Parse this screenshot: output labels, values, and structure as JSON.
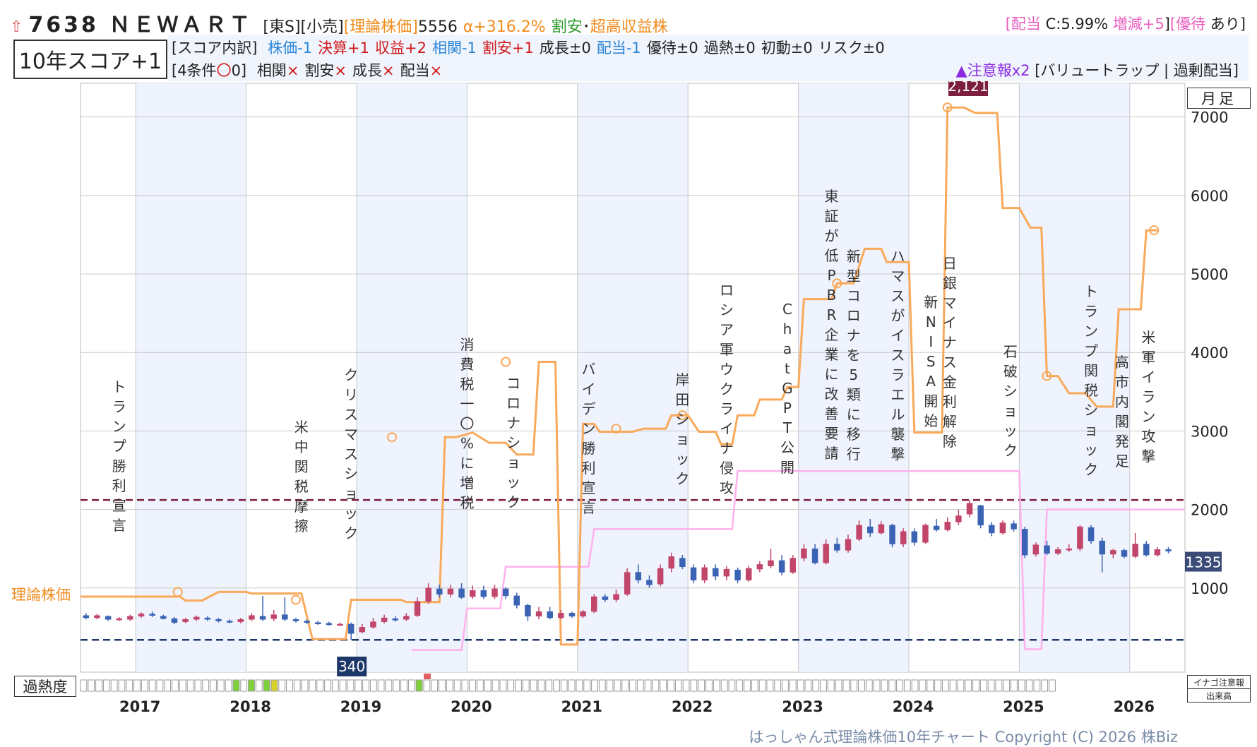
{
  "header": {
    "code": "7638",
    "name": "ＮＥＷＡＲＴ",
    "market": "[東S]",
    "sector": "[小売]",
    "theory_label": "[理論株価]",
    "theory_value": "5556",
    "alpha": "α+316.2%",
    "cheap": "割安",
    "dot": "･",
    "high_yield": "超高収益株",
    "dividend_label": "配当",
    "dividend_value": "C:5.99%",
    "change": "増減+5",
    "yutai_label": "優待",
    "yutai_value": "あり"
  },
  "score": {
    "title": "10年スコア+1",
    "breakdown_label": "[スコア内訳]",
    "items": [
      {
        "label": "株価-1",
        "color": "#2a86d8"
      },
      {
        "label": "決算+1",
        "color": "#d01818"
      },
      {
        "label": "収益+2",
        "color": "#d01818"
      },
      {
        "label": "相関-1",
        "color": "#2a86d8"
      },
      {
        "label": "割安+1",
        "color": "#d01818"
      },
      {
        "label": "成長±0",
        "color": "#222222"
      },
      {
        "label": "配当-1",
        "color": "#2a86d8"
      },
      {
        "label": "優待±0",
        "color": "#222222"
      },
      {
        "label": "過熱±0",
        "color": "#222222"
      },
      {
        "label": "初動±0",
        "color": "#222222"
      },
      {
        "label": "リスク±0",
        "color": "#222222"
      }
    ],
    "conditions_label": "[4条件",
    "conditions_mark": "〇",
    "conditions_count": "0]",
    "conditions": [
      "相関",
      "割安",
      "成長",
      "配当"
    ],
    "cross": "×",
    "warning": "▲注意報x2",
    "warning_detail": "[バリュートラップ | 過剰配当]"
  },
  "controls": {
    "period": "月足",
    "heat_label": "過熱度",
    "inago_label": "イナゴ注意報",
    "volume_label": "出来高"
  },
  "footer": "はっしゃん式理論株価10年チャート Copyright (C) 2026 株Biz",
  "chart_data": {
    "type": "candlestick",
    "ylim": [
      0,
      7500
    ],
    "yticks": [
      1000,
      2000,
      3000,
      4000,
      5000,
      6000,
      7000
    ],
    "years": [
      "2017",
      "2018",
      "2019",
      "2020",
      "2021",
      "2022",
      "2023",
      "2024",
      "2025",
      "2026"
    ],
    "theory_label": "理論株価",
    "high_label": "2,121",
    "low_label": "340",
    "high_value": 2121,
    "low_value": 340,
    "current_label": "1335",
    "current_value": 1335,
    "colors": {
      "up": "#c2456a",
      "down": "#3b63b4",
      "theory": "#f9a95a",
      "pink": "#ffb0ec",
      "high": "#7c1f3e",
      "low": "#1e3769",
      "band": "#eef3fd"
    },
    "theory_price": [
      [
        2016.5,
        890
      ],
      [
        2017.4,
        890
      ],
      [
        2017.45,
        840
      ],
      [
        2017.6,
        840
      ],
      [
        2017.75,
        950
      ],
      [
        2018.0,
        950
      ],
      [
        2018.05,
        930
      ],
      [
        2018.5,
        930
      ],
      [
        2018.6,
        350
      ],
      [
        2018.9,
        350
      ],
      [
        2018.95,
        850
      ],
      [
        2019.4,
        850
      ],
      [
        2019.45,
        820
      ],
      [
        2019.75,
        820
      ],
      [
        2019.8,
        2920
      ],
      [
        2019.9,
        2920
      ],
      [
        2020.05,
        2980
      ],
      [
        2020.2,
        2850
      ],
      [
        2020.35,
        2850
      ],
      [
        2020.45,
        2700
      ],
      [
        2020.6,
        2700
      ],
      [
        2020.65,
        3880
      ],
      [
        2020.8,
        3880
      ],
      [
        2020.85,
        280
      ],
      [
        2021.0,
        280
      ],
      [
        2021.05,
        3090
      ],
      [
        2021.15,
        3090
      ],
      [
        2021.2,
        2990
      ],
      [
        2021.5,
        2990
      ],
      [
        2021.6,
        3030
      ],
      [
        2021.8,
        3030
      ],
      [
        2021.85,
        3200
      ],
      [
        2022.0,
        3200
      ],
      [
        2022.1,
        2990
      ],
      [
        2022.25,
        2990
      ],
      [
        2022.3,
        2830
      ],
      [
        2022.4,
        2830
      ],
      [
        2022.45,
        3200
      ],
      [
        2022.6,
        3200
      ],
      [
        2022.65,
        3400
      ],
      [
        2022.85,
        3400
      ],
      [
        2022.9,
        3560
      ],
      [
        2023.0,
        3560
      ],
      [
        2023.05,
        4680
      ],
      [
        2023.3,
        4680
      ],
      [
        2023.35,
        4880
      ],
      [
        2023.5,
        4880
      ],
      [
        2023.6,
        5320
      ],
      [
        2023.75,
        5320
      ],
      [
        2023.8,
        5150
      ],
      [
        2024.0,
        5150
      ],
      [
        2024.05,
        2980
      ],
      [
        2024.3,
        2980
      ],
      [
        2024.35,
        7120
      ],
      [
        2024.5,
        7120
      ],
      [
        2024.6,
        7050
      ],
      [
        2024.8,
        7050
      ],
      [
        2024.85,
        5840
      ],
      [
        2025.0,
        5840
      ],
      [
        2025.1,
        5590
      ],
      [
        2025.2,
        5590
      ],
      [
        2025.25,
        3700
      ],
      [
        2025.35,
        3700
      ],
      [
        2025.45,
        3480
      ],
      [
        2025.6,
        3480
      ],
      [
        2025.7,
        3310
      ],
      [
        2025.85,
        3310
      ],
      [
        2025.9,
        4550
      ],
      [
        2026.1,
        4550
      ],
      [
        2026.15,
        5556
      ],
      [
        2026.25,
        5556
      ]
    ],
    "theory_markers": [
      [
        2017.38,
        950
      ],
      [
        2018.45,
        850
      ],
      [
        2019.32,
        2920
      ],
      [
        2020.35,
        3880
      ],
      [
        2021.35,
        3030
      ],
      [
        2021.95,
        3200
      ],
      [
        2023.35,
        4880
      ],
      [
        2024.35,
        7120
      ],
      [
        2025.25,
        3700
      ],
      [
        2026.22,
        5556
      ]
    ],
    "pink_line": [
      [
        2019.5,
        210
      ],
      [
        2019.95,
        210
      ],
      [
        2020.0,
        740
      ],
      [
        2020.3,
        740
      ],
      [
        2020.35,
        1270
      ],
      [
        2021.1,
        1270
      ],
      [
        2021.15,
        1750
      ],
      [
        2022.4,
        1750
      ],
      [
        2022.45,
        2490
      ],
      [
        2023.8,
        2490
      ],
      [
        2023.85,
        2490
      ],
      [
        2025.0,
        2490
      ],
      [
        2025.05,
        220
      ],
      [
        2025.2,
        220
      ],
      [
        2025.25,
        2000
      ],
      [
        2026.5,
        2000
      ]
    ],
    "candles": [
      [
        2016.55,
        650,
        620,
        680,
        600
      ],
      [
        2016.65,
        620,
        650,
        670,
        600
      ],
      [
        2016.75,
        640,
        600,
        650,
        580
      ],
      [
        2016.85,
        600,
        610,
        630,
        580
      ],
      [
        2016.95,
        600,
        640,
        660,
        580
      ],
      [
        2017.05,
        640,
        670,
        690,
        620
      ],
      [
        2017.15,
        670,
        650,
        700,
        630
      ],
      [
        2017.25,
        640,
        610,
        660,
        600
      ],
      [
        2017.35,
        610,
        560,
        630,
        540
      ],
      [
        2017.45,
        570,
        600,
        620,
        550
      ],
      [
        2017.55,
        600,
        630,
        650,
        580
      ],
      [
        2017.65,
        620,
        600,
        640,
        580
      ],
      [
        2017.75,
        600,
        580,
        620,
        560
      ],
      [
        2017.85,
        580,
        570,
        600,
        550
      ],
      [
        2017.95,
        570,
        600,
        620,
        550
      ],
      [
        2018.05,
        600,
        650,
        680,
        580
      ],
      [
        2018.15,
        640,
        600,
        900,
        580
      ],
      [
        2018.25,
        610,
        660,
        720,
        580
      ],
      [
        2018.35,
        660,
        600,
        880,
        580
      ],
      [
        2018.45,
        600,
        580,
        620,
        560
      ],
      [
        2018.55,
        580,
        560,
        600,
        540
      ],
      [
        2018.65,
        560,
        550,
        580,
        530
      ],
      [
        2018.75,
        550,
        540,
        570,
        520
      ],
      [
        2018.85,
        540,
        540,
        560,
        520
      ],
      [
        2018.95,
        540,
        420,
        560,
        340
      ],
      [
        2019.05,
        440,
        500,
        540,
        420
      ],
      [
        2019.15,
        500,
        570,
        620,
        480
      ],
      [
        2019.25,
        570,
        620,
        660,
        550
      ],
      [
        2019.35,
        610,
        590,
        640,
        570
      ],
      [
        2019.45,
        600,
        640,
        680,
        580
      ],
      [
        2019.55,
        650,
        830,
        880,
        630
      ],
      [
        2019.65,
        830,
        1000,
        1060,
        800
      ],
      [
        2019.75,
        990,
        920,
        1040,
        880
      ],
      [
        2019.85,
        920,
        990,
        1040,
        880
      ],
      [
        2019.95,
        990,
        880,
        1060,
        860
      ],
      [
        2020.05,
        890,
        970,
        1030,
        860
      ],
      [
        2020.15,
        970,
        890,
        1030,
        860
      ],
      [
        2020.25,
        890,
        990,
        1040,
        860
      ],
      [
        2020.35,
        990,
        900,
        1010,
        860
      ],
      [
        2020.45,
        900,
        780,
        940,
        740
      ],
      [
        2020.55,
        780,
        640,
        800,
        580
      ],
      [
        2020.65,
        640,
        700,
        760,
        600
      ],
      [
        2020.75,
        700,
        620,
        760,
        600
      ],
      [
        2020.85,
        620,
        680,
        720,
        600
      ],
      [
        2020.95,
        680,
        640,
        700,
        620
      ],
      [
        2021.05,
        640,
        700,
        720,
        620
      ],
      [
        2021.15,
        700,
        890,
        920,
        680
      ],
      [
        2021.25,
        890,
        850,
        920,
        820
      ],
      [
        2021.35,
        850,
        920,
        980,
        820
      ],
      [
        2021.45,
        920,
        1200,
        1250,
        900
      ],
      [
        2021.55,
        1200,
        1100,
        1300,
        1060
      ],
      [
        2021.65,
        1100,
        1040,
        1160,
        1000
      ],
      [
        2021.75,
        1050,
        1250,
        1300,
        1020
      ],
      [
        2021.85,
        1250,
        1400,
        1450,
        1200
      ],
      [
        2021.95,
        1380,
        1270,
        1420,
        1240
      ],
      [
        2022.05,
        1260,
        1100,
        1300,
        1060
      ],
      [
        2022.15,
        1100,
        1260,
        1300,
        1060
      ],
      [
        2022.25,
        1250,
        1150,
        1300,
        1100
      ],
      [
        2022.35,
        1150,
        1240,
        1280,
        1100
      ],
      [
        2022.45,
        1230,
        1100,
        1260,
        1060
      ],
      [
        2022.55,
        1100,
        1250,
        1280,
        1080
      ],
      [
        2022.65,
        1240,
        1300,
        1340,
        1200
      ],
      [
        2022.75,
        1280,
        1350,
        1500,
        1250
      ],
      [
        2022.85,
        1350,
        1200,
        1420,
        1160
      ],
      [
        2022.95,
        1200,
        1380,
        1420,
        1180
      ],
      [
        2023.05,
        1380,
        1500,
        1560,
        1340
      ],
      [
        2023.15,
        1500,
        1320,
        1560,
        1300
      ],
      [
        2023.25,
        1320,
        1560,
        1620,
        1300
      ],
      [
        2023.35,
        1560,
        1480,
        1640,
        1450
      ],
      [
        2023.45,
        1480,
        1620,
        1680,
        1450
      ],
      [
        2023.55,
        1620,
        1800,
        1860,
        1600
      ],
      [
        2023.65,
        1780,
        1700,
        1880,
        1650
      ],
      [
        2023.75,
        1700,
        1810,
        1850,
        1680
      ],
      [
        2023.85,
        1800,
        1560,
        1820,
        1520
      ],
      [
        2023.95,
        1560,
        1720,
        1760,
        1520
      ],
      [
        2024.05,
        1720,
        1580,
        1760,
        1540
      ],
      [
        2024.15,
        1580,
        1800,
        1820,
        1560
      ],
      [
        2024.25,
        1790,
        1740,
        1880,
        1720
      ],
      [
        2024.35,
        1740,
        1840,
        1900,
        1720
      ],
      [
        2024.45,
        1840,
        1920,
        2000,
        1800
      ],
      [
        2024.55,
        1940,
        2080,
        2121,
        1900
      ],
      [
        2024.65,
        2050,
        1800,
        2060,
        1760
      ],
      [
        2024.75,
        1800,
        1700,
        1840,
        1660
      ],
      [
        2024.85,
        1700,
        1830,
        1860,
        1680
      ],
      [
        2024.95,
        1820,
        1750,
        1860,
        1720
      ],
      [
        2025.05,
        1750,
        1420,
        1780,
        1380
      ],
      [
        2025.15,
        1430,
        1550,
        1580,
        1400
      ],
      [
        2025.25,
        1540,
        1440,
        1600,
        1420
      ],
      [
        2025.35,
        1440,
        1490,
        1520,
        1420
      ],
      [
        2025.45,
        1490,
        1500,
        1560,
        1460
      ],
      [
        2025.55,
        1500,
        1780,
        1800,
        1470
      ],
      [
        2025.65,
        1770,
        1600,
        1800,
        1560
      ],
      [
        2025.75,
        1600,
        1430,
        1640,
        1200
      ],
      [
        2025.85,
        1430,
        1480,
        1500,
        1380
      ],
      [
        2025.95,
        1480,
        1400,
        1500,
        1380
      ],
      [
        2026.05,
        1400,
        1560,
        1700,
        1380
      ],
      [
        2026.15,
        1560,
        1420,
        1600,
        1400
      ],
      [
        2026.25,
        1420,
        1490,
        1520,
        1400
      ],
      [
        2026.35,
        1490,
        1470,
        1520,
        1440
      ]
    ],
    "events": [
      {
        "text": "トランプ勝利宣言",
        "x": 2016.85,
        "top": 555
      },
      {
        "text": "米中関税摩擦",
        "x": 2018.5,
        "top": 612
      },
      {
        "text": "クリスマスショック",
        "x": 2018.95,
        "top": 538
      },
      {
        "text": "消費税一〇%に増税",
        "x": 2020.0,
        "top": 495
      },
      {
        "text": "コロナショック",
        "x": 2020.42,
        "top": 550
      },
      {
        "text": "バイデン勝利宣言",
        "x": 2021.1,
        "top": 530
      },
      {
        "text": "岸田ショック",
        "x": 2021.95,
        "top": 545
      },
      {
        "text": "ロシア軍ウクライナ侵攻",
        "x": 2022.35,
        "top": 418
      },
      {
        "text": "ChatGPT公開",
        "x": 2022.9,
        "top": 445
      },
      {
        "text": "東証が低PBR企業に改善要請",
        "x": 2023.3,
        "top": 285
      },
      {
        "text": "新型コロナを5類に移行",
        "x": 2023.5,
        "top": 370
      },
      {
        "text": "ハマスがイスラエル襲撃",
        "x": 2023.9,
        "top": 370
      },
      {
        "text": "新NISA開始",
        "x": 2024.2,
        "top": 435
      },
      {
        "text": "日銀マイナス金利解除",
        "x": 2024.37,
        "top": 380
      },
      {
        "text": "石破ショック",
        "x": 2024.92,
        "top": 505
      },
      {
        "text": "トランプ関税ショック",
        "x": 2025.65,
        "top": 420
      },
      {
        "text": "高市内閣発足",
        "x": 2025.93,
        "top": 520
      },
      {
        "text": "米軍イラン攻撃",
        "x": 2026.17,
        "top": 485
      }
    ],
    "heat_green": [
      20,
      22,
      24,
      44
    ],
    "heat_yellow": [
      25
    ],
    "heat_red_marker": 45
  }
}
